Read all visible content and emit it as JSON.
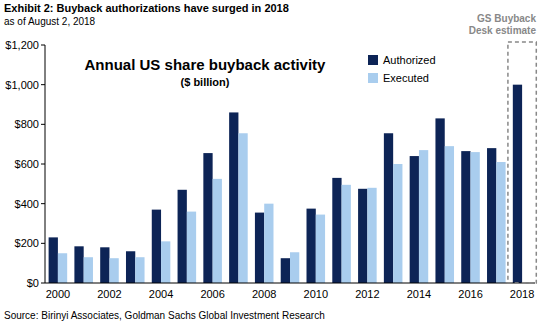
{
  "chart_data": {
    "type": "bar",
    "header": "Exhibit 2: Buyback authorizations have surged in 2018",
    "subheader": "as of August 2, 2018",
    "title": "Annual US share buyback activity",
    "subtitle": "($ billion)",
    "source": "Source: Birinyi Associates, Goldman Sachs Global Investment Research",
    "categories": [
      "2000",
      null,
      "2002",
      null,
      "2004",
      null,
      "2006",
      null,
      "2008",
      null,
      "2010",
      null,
      "2012",
      null,
      "2014",
      null,
      "2016",
      null,
      "2018"
    ],
    "series": [
      {
        "name": "Authorized",
        "color": "#0d2456",
        "values": [
          230,
          185,
          180,
          160,
          370,
          470,
          655,
          860,
          355,
          125,
          375,
          530,
          475,
          755,
          640,
          830,
          665,
          680,
          1000
        ]
      },
      {
        "name": "Executed",
        "color": "#a9cdee",
        "values": [
          150,
          130,
          125,
          130,
          210,
          360,
          525,
          755,
          400,
          155,
          345,
          495,
          480,
          600,
          670,
          690,
          660,
          610,
          null
        ]
      }
    ],
    "ylim": [
      0,
      1200
    ],
    "yticks": [
      {
        "value": 0,
        "label": "$0"
      },
      {
        "value": 200,
        "label": "$200"
      },
      {
        "value": 400,
        "label": "$400"
      },
      {
        "value": 600,
        "label": "$600"
      },
      {
        "value": 800,
        "label": "$800"
      },
      {
        "value": 1000,
        "label": "$1,000"
      },
      {
        "value": 1200,
        "label": "$1,200"
      }
    ],
    "grid": false,
    "legend": "top-right",
    "annotations": [
      {
        "text": "GS Buyback Desk estimate",
        "x": "2018"
      }
    ]
  }
}
